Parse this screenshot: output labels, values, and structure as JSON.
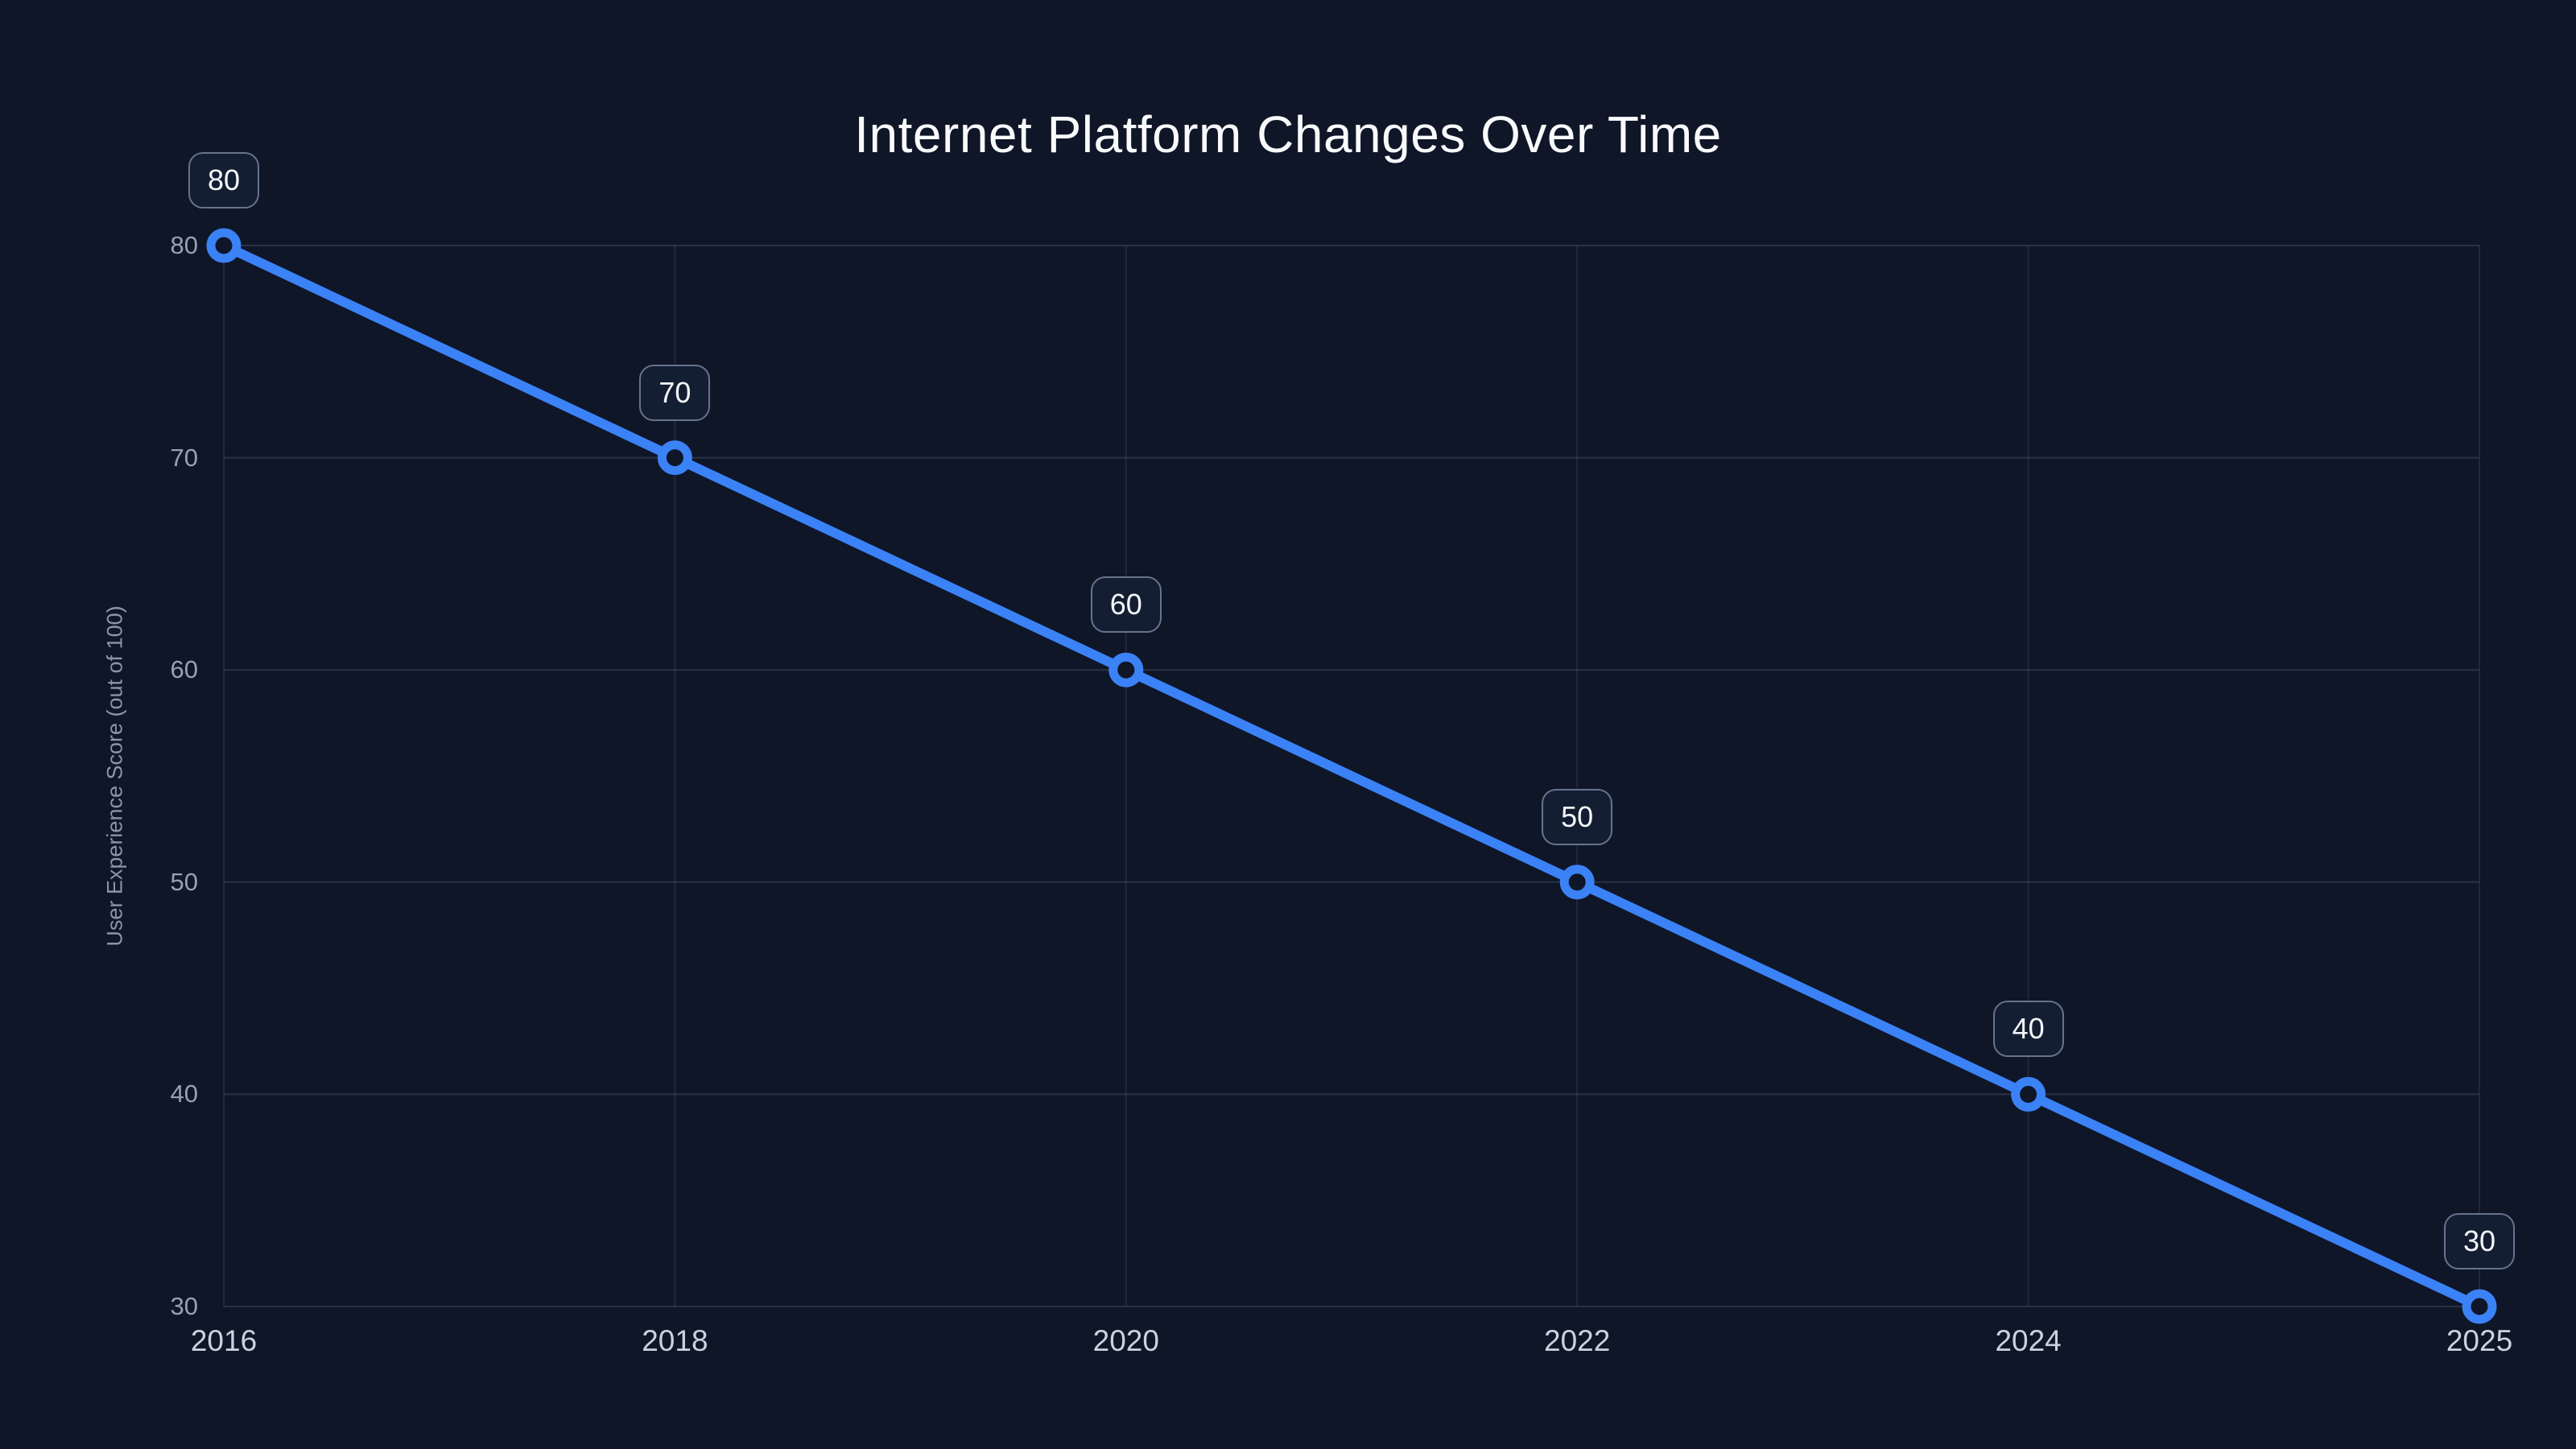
{
  "title": "Internet Platform Changes Over Time",
  "chart_data": {
    "type": "line",
    "title": "Internet Platform Changes Over Time",
    "xlabel": "",
    "ylabel": "User Experience Score (out of 100)",
    "categories": [
      "2016",
      "2018",
      "2020",
      "2022",
      "2024",
      "2025"
    ],
    "values": [
      80,
      70,
      60,
      50,
      40,
      30
    ],
    "point_labels": [
      "80",
      "70",
      "60",
      "50",
      "40",
      "30"
    ],
    "yticks": [
      30,
      40,
      50,
      60,
      70,
      80
    ],
    "ylim": [
      30,
      80
    ],
    "grid": true,
    "legend": "none",
    "marker": "open-circle"
  },
  "colors": {
    "background": "#0f1628",
    "line": "#3b82f6",
    "marker_fill": "#0f1628",
    "grid_h": "rgba(148,163,184,0.20)",
    "grid_v": "rgba(148,163,184,0.13)",
    "title_text": "#f8fafc",
    "y_tick_text": "#97a1b4",
    "x_tick_text": "#cbd2dd",
    "axis_title_text": "#8a95a9",
    "badge_bg": "#141e33",
    "badge_border": "#67738c",
    "badge_text": "#f4f7fa"
  }
}
